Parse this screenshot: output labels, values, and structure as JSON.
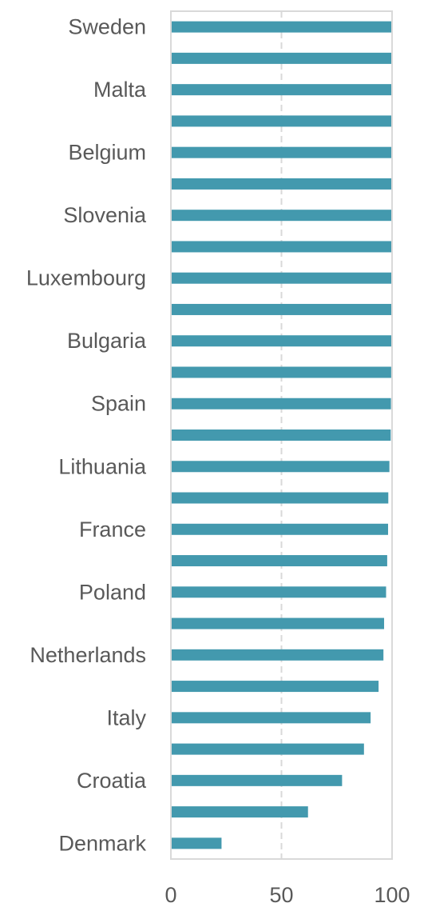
{
  "chart_data": {
    "type": "bar",
    "orientation": "horizontal",
    "categories": [
      "Sweden",
      "",
      "Malta",
      "",
      "Belgium",
      "",
      "Slovenia",
      "",
      "Luxembourg",
      "",
      "Bulgaria",
      "",
      "Spain",
      "",
      "Lithuania",
      "",
      "France",
      "",
      "Poland",
      "",
      "Netherlands",
      "",
      "Italy",
      "",
      "Croatia",
      "",
      "Denmark"
    ],
    "series": [
      {
        "values": [
          100,
          100,
          100,
          100,
          100,
          100,
          100,
          100,
          100,
          99.7,
          99.7,
          99.6,
          99.5,
          99.4,
          98.8,
          98.3,
          98.2,
          97.8,
          97.3,
          96.4,
          96.1,
          93.9,
          90.3,
          87.3,
          77.4,
          62.0,
          22.9
        ]
      }
    ],
    "xlim": [
      0,
      100
    ],
    "xticks": [
      0,
      50,
      100
    ],
    "grid": "vertical-dashed",
    "legend": "none",
    "bar_color": "#4399AE",
    "gridline_color": "#D9D9D9",
    "frame_color": "#D9D9D9",
    "label_color": "#595959"
  }
}
